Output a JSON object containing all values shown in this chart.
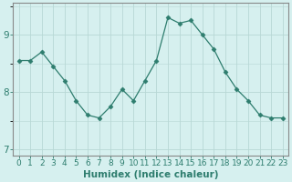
{
  "x": [
    0,
    1,
    2,
    3,
    4,
    5,
    6,
    7,
    8,
    9,
    10,
    11,
    12,
    13,
    14,
    15,
    16,
    17,
    18,
    19,
    20,
    21,
    22,
    23
  ],
  "y": [
    8.55,
    8.55,
    8.7,
    8.45,
    8.2,
    7.85,
    7.6,
    7.55,
    7.75,
    8.05,
    7.85,
    8.2,
    8.55,
    9.3,
    9.2,
    9.25,
    9.0,
    8.75,
    8.35,
    8.05,
    7.85,
    7.6,
    7.55,
    7.55
  ],
  "line_color": "#2e7d6e",
  "marker": "D",
  "marker_size": 2.5,
  "bg_color": "#d6f0ef",
  "grid_color": "#b8d8d5",
  "xlabel": "Humidex (Indice chaleur)",
  "ylim": [
    6.9,
    9.55
  ],
  "xlim": [
    -0.5,
    23.5
  ],
  "yticks": [
    7,
    8,
    9
  ],
  "xticks": [
    0,
    1,
    2,
    3,
    4,
    5,
    6,
    7,
    8,
    9,
    10,
    11,
    12,
    13,
    14,
    15,
    16,
    17,
    18,
    19,
    20,
    21,
    22,
    23
  ],
  "tick_color": "#2e7d6e",
  "axis_color": "#888888",
  "tick_fontsize": 6.5,
  "xlabel_fontsize": 7.5
}
